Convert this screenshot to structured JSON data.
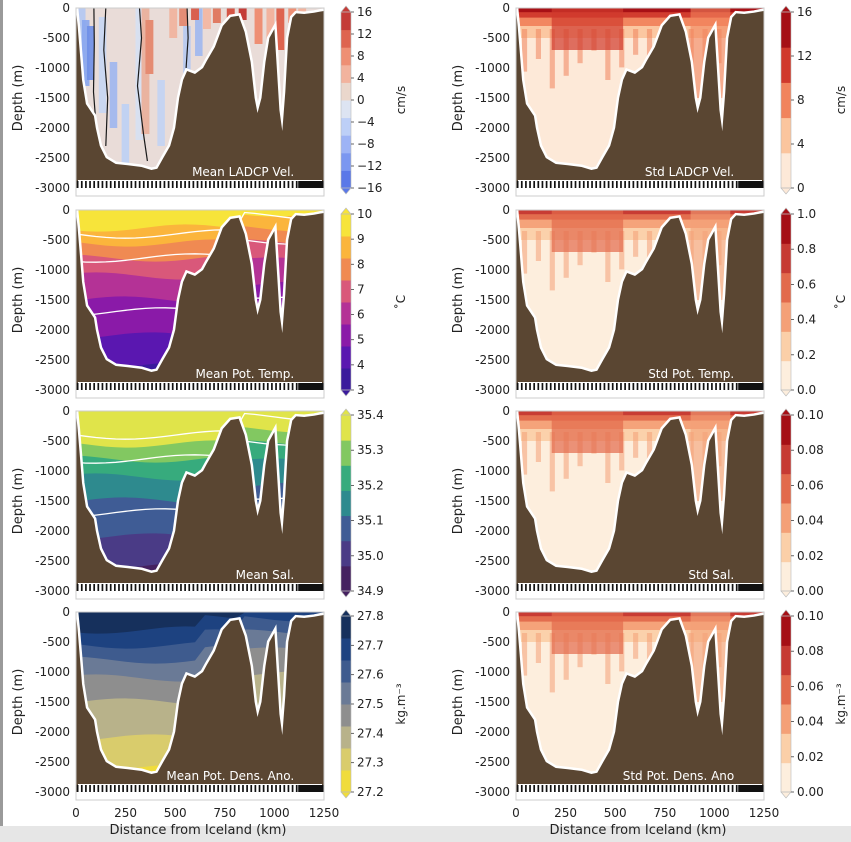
{
  "figure": {
    "xlabel": "Distance from Iceland (km)",
    "x_ticks": [
      "0",
      "250",
      "500",
      "750",
      "1000",
      "1250"
    ],
    "ylabel": "Depth (m)",
    "y_ticks": [
      "0",
      "-500",
      "-1000",
      "-1500",
      "-2000",
      "-2500",
      "-3000"
    ],
    "bathymetry_color": "#5a4632"
  },
  "chart_data": [
    {
      "type": "heatmap",
      "panel": "left",
      "row": 0,
      "title": "Mean LADCP Vel.",
      "xlabel": "Distance from Iceland (km)",
      "ylabel": "Depth (m)",
      "xlim": [
        0,
        1250
      ],
      "ylim": [
        -3000,
        0
      ],
      "colorbar": {
        "label": "cm/s",
        "ticks": [
          "16",
          "12",
          "8",
          "4",
          "0",
          "−4",
          "−8",
          "−12",
          "−16"
        ],
        "colors": [
          "#5a78e8",
          "#7b97f0",
          "#9db3f5",
          "#bdcff7",
          "#dde4f2",
          "#ead7cc",
          "#f2b39e",
          "#ee8f74",
          "#de644f",
          "#c43c38"
        ]
      },
      "palette": "diverging"
    },
    {
      "type": "heatmap",
      "panel": "right",
      "row": 0,
      "title": "Std LADCP Vel.",
      "xlabel": "Distance from Iceland (km)",
      "ylabel": "Depth (m)",
      "xlim": [
        0,
        1250
      ],
      "ylim": [
        -3000,
        0
      ],
      "colorbar": {
        "label": "cm/s",
        "ticks": [
          "16",
          "12",
          "8",
          "4",
          "0"
        ],
        "colors": [
          "#fde9d8",
          "#fbc59e",
          "#f1845d",
          "#d0392c",
          "#a50f15"
        ]
      },
      "palette": "reds"
    },
    {
      "type": "heatmap",
      "panel": "left",
      "row": 1,
      "title": "Mean Pot. Temp.",
      "xlabel": "Distance from Iceland (km)",
      "ylabel": "Depth (m)",
      "xlim": [
        0,
        1250
      ],
      "ylim": [
        -3000,
        0
      ],
      "colorbar": {
        "label": "˚C",
        "ticks": [
          "10",
          "9",
          "8",
          "7",
          "6",
          "5",
          "4",
          "3"
        ],
        "colors": [
          "#3a1a9c",
          "#5a17b0",
          "#8a1aa8",
          "#b43296",
          "#d9587a",
          "#f08a52",
          "#fbb53c",
          "#f7e43a"
        ]
      },
      "palette": "plasma"
    },
    {
      "type": "heatmap",
      "panel": "right",
      "row": 1,
      "title": "Std Pot. Temp.",
      "xlabel": "Distance from Iceland (km)",
      "ylabel": "Depth (m)",
      "xlim": [
        0,
        1250
      ],
      "ylim": [
        -3000,
        0
      ],
      "colorbar": {
        "label": "˚C",
        "ticks": [
          "1.0",
          "0.8",
          "0.6",
          "0.4",
          "0.2",
          "0.0"
        ],
        "colors": [
          "#fdeedd",
          "#fbcfa8",
          "#f4a077",
          "#e26a4c",
          "#c63a33",
          "#a50f15"
        ]
      },
      "palette": "reds"
    },
    {
      "type": "heatmap",
      "panel": "left",
      "row": 2,
      "title": "Mean Sal.",
      "xlabel": "Distance from Iceland (km)",
      "ylabel": "Depth (m)",
      "xlim": [
        0,
        1250
      ],
      "ylim": [
        -3000,
        0
      ],
      "colorbar": {
        "label": "",
        "ticks": [
          "35.4",
          "35.3",
          "35.2",
          "35.1",
          "35.0",
          "34.9"
        ],
        "colors": [
          "#452160",
          "#4a3b86",
          "#3f5c95",
          "#2e8a8e",
          "#37ab7d",
          "#82c861",
          "#e0e44a"
        ]
      },
      "palette": "viridis"
    },
    {
      "type": "heatmap",
      "panel": "right",
      "row": 2,
      "title": "Std Sal.",
      "xlabel": "Distance from Iceland (km)",
      "ylabel": "Depth (m)",
      "xlim": [
        0,
        1250
      ],
      "ylim": [
        -3000,
        0
      ],
      "colorbar": {
        "label": "",
        "ticks": [
          "0.10",
          "0.08",
          "0.06",
          "0.04",
          "0.02",
          "0.00"
        ],
        "colors": [
          "#fdeedd",
          "#fbcfa8",
          "#f4a077",
          "#e26a4c",
          "#c63a33",
          "#a50f15"
        ]
      },
      "palette": "reds"
    },
    {
      "type": "heatmap",
      "panel": "left",
      "row": 3,
      "title": "Mean Pot. Dens. Ano.",
      "xlabel": "Distance from Iceland (km)",
      "ylabel": "Depth (m)",
      "xlim": [
        0,
        1250
      ],
      "ylim": [
        -3000,
        0
      ],
      "colorbar": {
        "label": "kg.m⁻³",
        "ticks": [
          "27.8",
          "27.7",
          "27.6",
          "27.5",
          "27.4",
          "27.3",
          "27.2"
        ],
        "colors": [
          "#f0dc3c",
          "#d9cc6c",
          "#b8b28a",
          "#8e8e8e",
          "#6a7a96",
          "#3e5b8e",
          "#1d4280",
          "#16305c"
        ]
      },
      "palette": "cividis"
    },
    {
      "type": "heatmap",
      "panel": "right",
      "row": 3,
      "title": "Std Pot. Dens. Ano",
      "xlabel": "Distance from Iceland (km)",
      "ylabel": "Depth (m)",
      "xlim": [
        0,
        1250
      ],
      "ylim": [
        -3000,
        0
      ],
      "colorbar": {
        "label": "kg.m⁻³",
        "ticks": [
          "0.10",
          "0.08",
          "0.06",
          "0.04",
          "0.02",
          "0.00"
        ],
        "colors": [
          "#fdeedd",
          "#fbcfa8",
          "#f4a077",
          "#e26a4c",
          "#c63a33",
          "#a50f15"
        ]
      },
      "palette": "reds"
    }
  ]
}
